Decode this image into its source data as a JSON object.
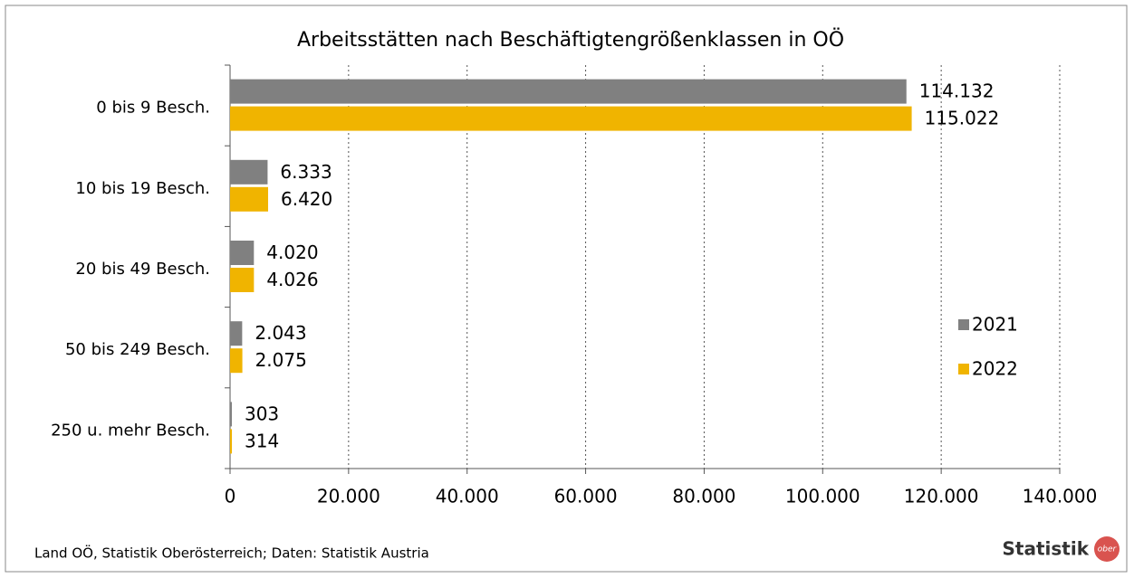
{
  "chart_data": {
    "type": "bar",
    "orientation": "horizontal",
    "title": "Arbeitsstätten nach Beschäftigtengrößenklassen in OÖ",
    "categories": [
      "0 bis 9 Besch.",
      "10 bis 19 Besch.",
      "20 bis 49 Besch.",
      "50 bis 249 Besch.",
      "250 u. mehr Besch."
    ],
    "series": [
      {
        "name": "2021",
        "color": "#808080",
        "values": [
          114132,
          6333,
          4020,
          2043,
          303
        ],
        "value_labels": [
          "114.132",
          "6.333",
          "4.020",
          "2.043",
          "303"
        ]
      },
      {
        "name": "2022",
        "color": "#f0b400",
        "values": [
          115022,
          6420,
          4026,
          2075,
          314
        ],
        "value_labels": [
          "115.022",
          "6.420",
          "4.026",
          "2.075",
          "314"
        ]
      }
    ],
    "xlim": [
      0,
      140000
    ],
    "xticks": [
      0,
      {
        "value": 20000,
        "label": "20.000"
      },
      {
        "value": 40000,
        "label": "40.000"
      },
      {
        "value": 60000,
        "label": "60.000"
      },
      {
        "value": 80000,
        "label": "80.000"
      },
      {
        "value": 100000,
        "label": "100.000"
      },
      {
        "value": 120000,
        "label": "120.000"
      },
      {
        "value": 140000,
        "label": "140.000"
      }
    ],
    "grid": true,
    "legend": "right",
    "source": "Land OÖ, Statistik Oberösterreich; Daten: Statistik Austria",
    "logo": {
      "text": "Statistik",
      "badge": "ober"
    }
  }
}
